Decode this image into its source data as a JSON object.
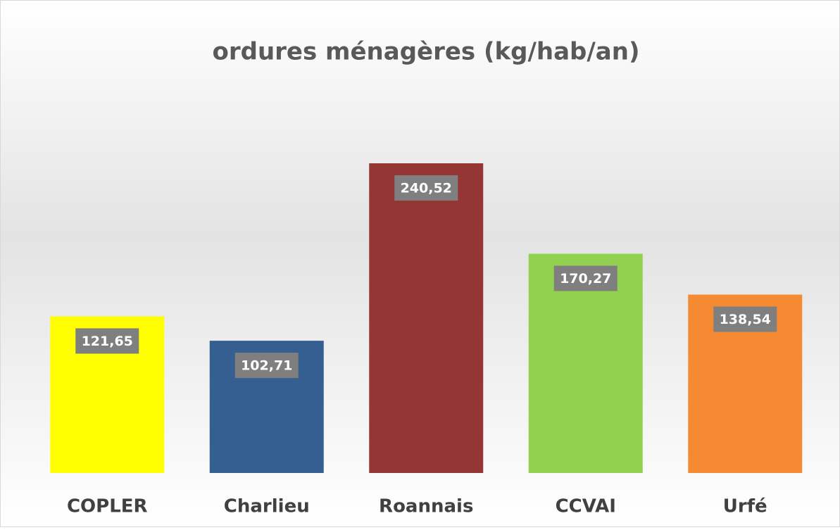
{
  "chart_data": {
    "type": "bar",
    "title": "ordures ménagères (kg/hab/an)",
    "categories": [
      "COPLER",
      "Charlieu",
      "Roannais",
      "CCVAI",
      "Urfé"
    ],
    "values": [
      121.65,
      102.71,
      240.52,
      170.27,
      138.54
    ],
    "value_labels": [
      "121,65",
      "102,71",
      "240,52",
      "170,27",
      "138,54"
    ],
    "colors": [
      "#ffff00",
      "#355f91",
      "#943634",
      "#92d050",
      "#f68a32"
    ]
  }
}
